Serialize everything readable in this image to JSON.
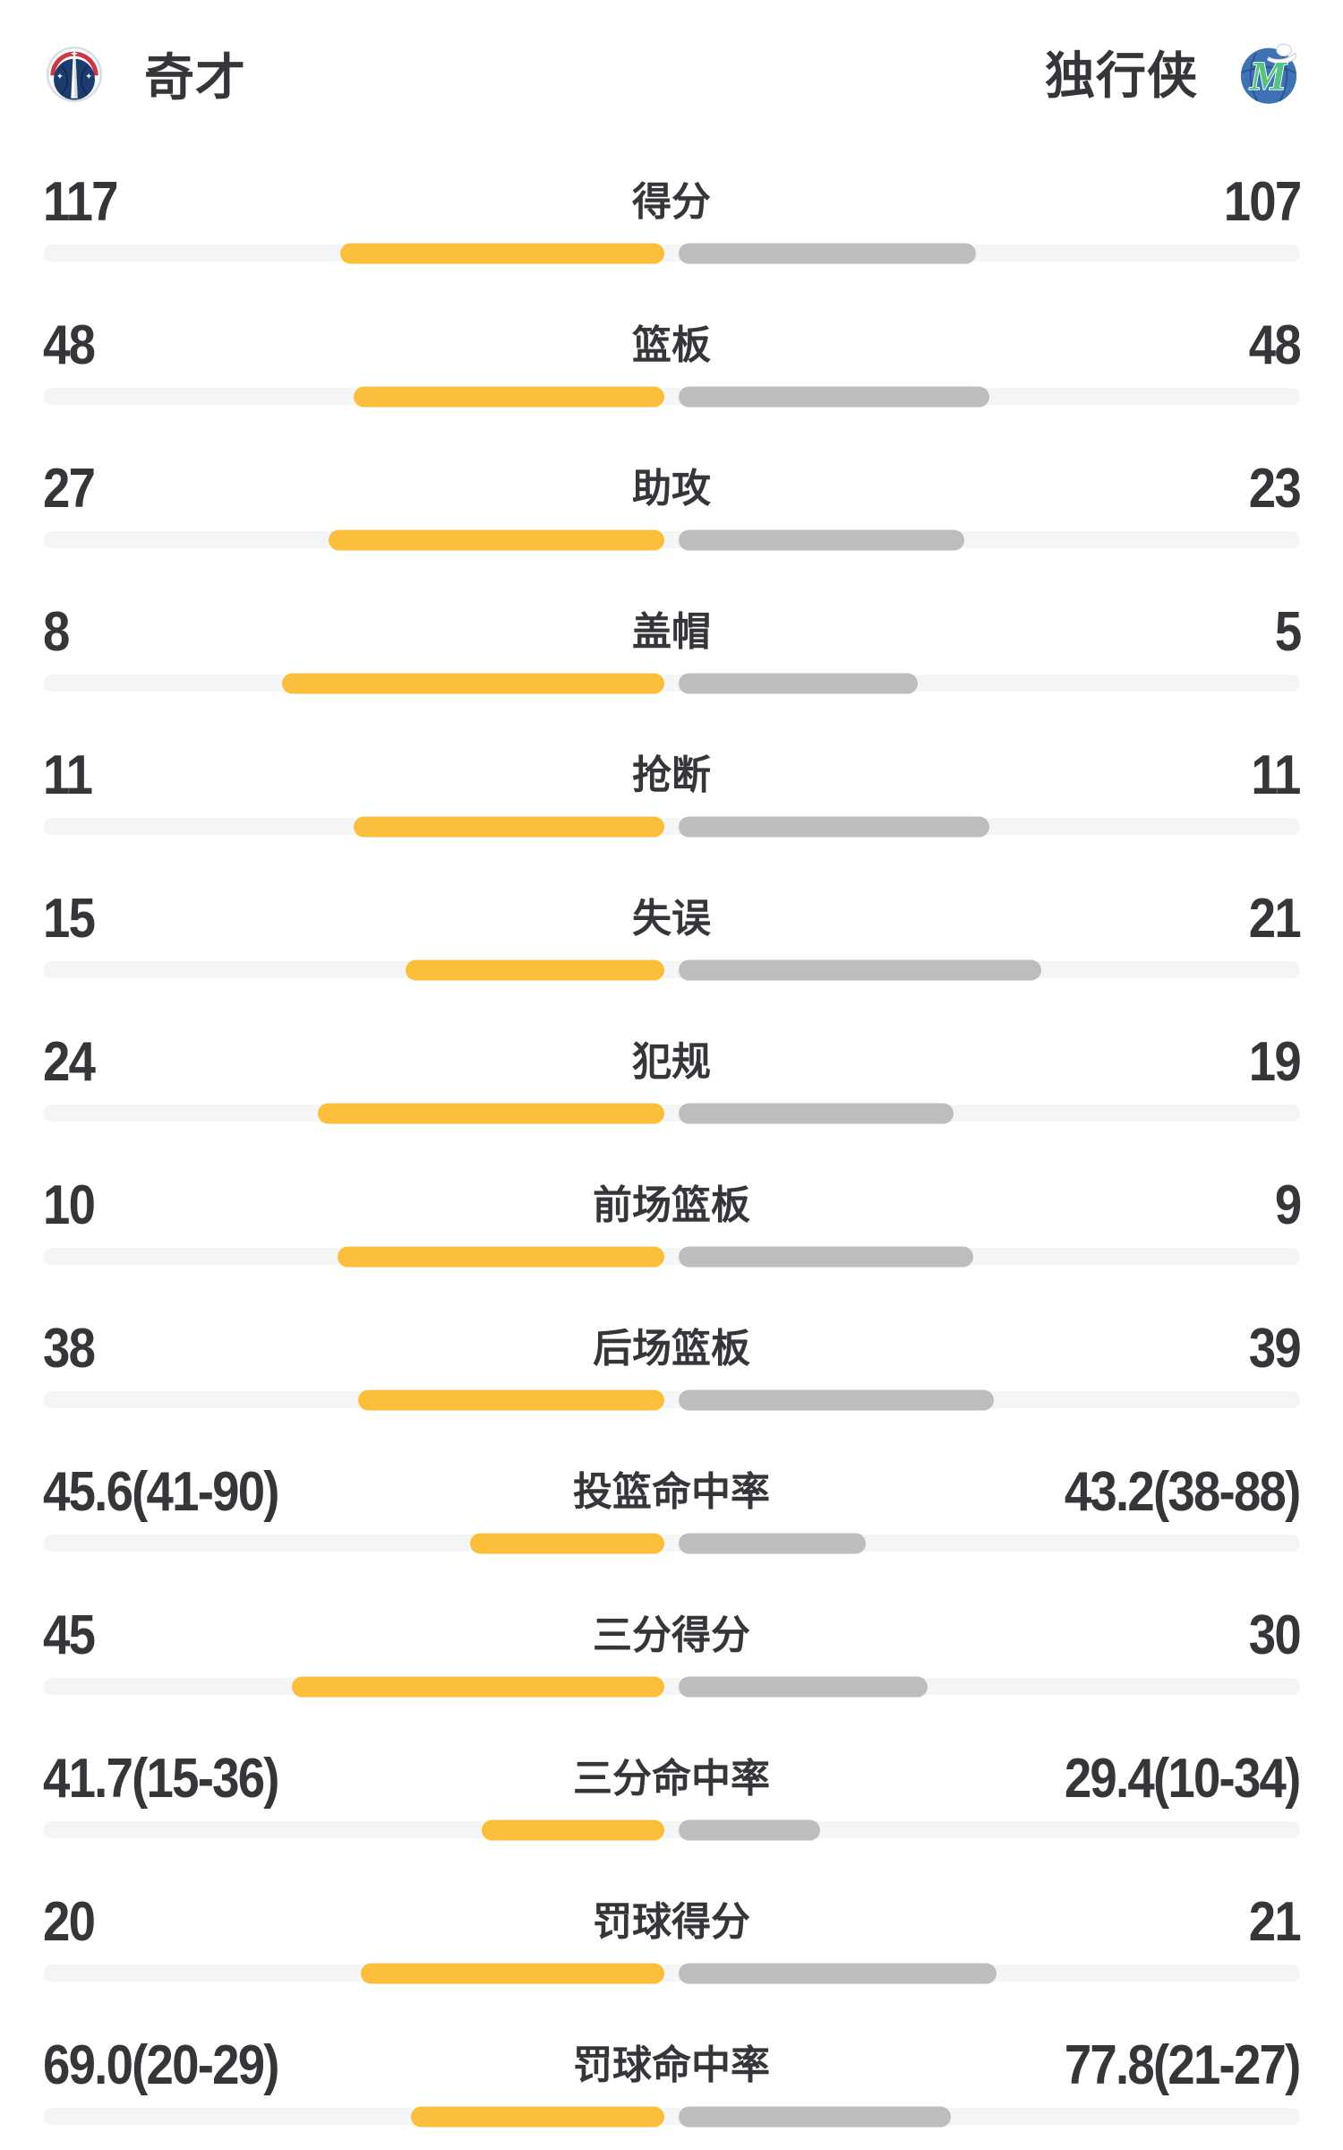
{
  "header": {
    "home": {
      "name": "奇才",
      "logo": "wizards"
    },
    "away": {
      "name": "独行侠",
      "logo": "mavericks"
    }
  },
  "colors": {
    "home_bar": "#FBBF3C",
    "away_bar": "#BDBDBD",
    "track": "#F4F5F7",
    "text": "#35363A",
    "wizards_navy": "#1C3C6D",
    "wizards_red": "#CD3745",
    "mavericks_blue": "#3E72B4",
    "mavericks_green": "#53C580"
  },
  "chart_data": {
    "type": "bar",
    "layout": "center-split horizontal comparison bars; left team yellow, right team gray; bar length = value/(home+away) for counts, value/(value+100) for percentage rows",
    "legend_position": "none",
    "grid": false,
    "rows": [
      {
        "label": "得分",
        "home": "117",
        "away": "107",
        "home_value": 117,
        "away_value": 107,
        "kind": "count"
      },
      {
        "label": "篮板",
        "home": "48",
        "away": "48",
        "home_value": 48,
        "away_value": 48,
        "kind": "count"
      },
      {
        "label": "助攻",
        "home": "27",
        "away": "23",
        "home_value": 27,
        "away_value": 23,
        "kind": "count"
      },
      {
        "label": "盖帽",
        "home": "8",
        "away": "5",
        "home_value": 8,
        "away_value": 5,
        "kind": "count"
      },
      {
        "label": "抢断",
        "home": "11",
        "away": "11",
        "home_value": 11,
        "away_value": 11,
        "kind": "count"
      },
      {
        "label": "失误",
        "home": "15",
        "away": "21",
        "home_value": 15,
        "away_value": 21,
        "kind": "count"
      },
      {
        "label": "犯规",
        "home": "24",
        "away": "19",
        "home_value": 24,
        "away_value": 19,
        "kind": "count"
      },
      {
        "label": "前场篮板",
        "home": "10",
        "away": "9",
        "home_value": 10,
        "away_value": 9,
        "kind": "count"
      },
      {
        "label": "后场篮板",
        "home": "38",
        "away": "39",
        "home_value": 38,
        "away_value": 39,
        "kind": "count"
      },
      {
        "label": "投篮命中率",
        "home": "45.6(41-90)",
        "away": "43.2(38-88)",
        "home_value": 45.6,
        "away_value": 43.2,
        "kind": "pct"
      },
      {
        "label": "三分得分",
        "home": "45",
        "away": "30",
        "home_value": 45,
        "away_value": 30,
        "kind": "count"
      },
      {
        "label": "三分命中率",
        "home": "41.7(15-36)",
        "away": "29.4(10-34)",
        "home_value": 41.7,
        "away_value": 29.4,
        "kind": "pct"
      },
      {
        "label": "罚球得分",
        "home": "20",
        "away": "21",
        "home_value": 20,
        "away_value": 21,
        "kind": "count"
      },
      {
        "label": "罚球命中率",
        "home": "69.0(20-29)",
        "away": "77.8(21-27)",
        "home_value": 69.0,
        "away_value": 77.8,
        "kind": "pct"
      }
    ]
  }
}
